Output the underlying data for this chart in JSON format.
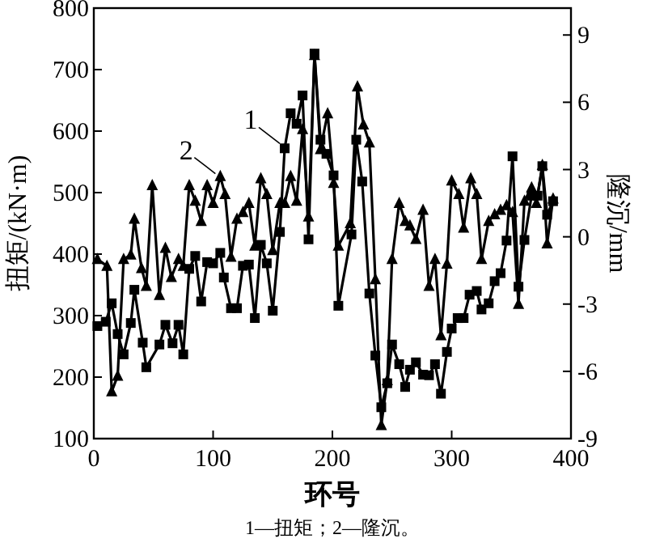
{
  "chart_data": {
    "type": "line",
    "xlabel": "环号",
    "ylabel": "扭矩/(kN·m)",
    "y2label": "隆沉/mm",
    "xlim": [
      0,
      400
    ],
    "xticks": [
      0,
      100,
      200,
      300,
      400
    ],
    "ylim": [
      100,
      800
    ],
    "yticks": [
      100,
      200,
      300,
      400,
      500,
      600,
      700,
      800
    ],
    "y2lim": [
      -9,
      10.2
    ],
    "y2ticks": [
      -9,
      -6,
      -3,
      0,
      3,
      6,
      9
    ],
    "series": [
      {
        "type": "line",
        "color": "#000000",
        "marker": "square",
        "x": [
          3,
          10,
          15,
          20,
          25,
          31,
          34,
          41,
          44,
          55,
          60,
          66,
          71,
          75,
          80,
          85,
          90,
          95,
          100,
          106,
          109,
          115,
          120,
          125,
          130,
          135,
          140,
          145,
          150,
          156,
          160,
          165,
          170,
          175,
          180,
          185,
          190,
          195,
          201,
          205,
          216,
          220,
          225,
          231,
          236,
          241,
          246,
          250,
          256,
          261,
          265,
          270,
          276,
          281,
          286,
          291,
          296,
          300,
          305,
          310,
          315,
          321,
          325,
          331,
          336,
          341,
          346,
          351,
          356,
          361,
          367,
          372,
          376,
          380,
          385
        ],
        "values": [
          283,
          290,
          320,
          270,
          237,
          288,
          342,
          256,
          216,
          253,
          285,
          255,
          285,
          237,
          376,
          397,
          323,
          387,
          385,
          402,
          362,
          312,
          312,
          381,
          383,
          296,
          415,
          385,
          308,
          436,
          572,
          629,
          612,
          658,
          424,
          726,
          586,
          563,
          528,
          316,
          432,
          586,
          518,
          336,
          235,
          151,
          190,
          253,
          221,
          184,
          212,
          224,
          204,
          203,
          221,
          173,
          241,
          279,
          296,
          296,
          334,
          340,
          310,
          320,
          356,
          369,
          422,
          559,
          347,
          423,
          495,
          495,
          543,
          464,
          486
        ]
      },
      {
        "type": "line",
        "color": "#000000",
        "marker": "triangle",
        "axis": "y2",
        "x": [
          3,
          11,
          15,
          20,
          25,
          31,
          34,
          40,
          44,
          49,
          55,
          60,
          65,
          71,
          75,
          80,
          85,
          90,
          95,
          100,
          106,
          110,
          115,
          120,
          125,
          130,
          135,
          140,
          145,
          150,
          156,
          160,
          165,
          170,
          175,
          180,
          185,
          190,
          196,
          201,
          205,
          215,
          221,
          226,
          231,
          236,
          241,
          246,
          250,
          256,
          261,
          265,
          270,
          276,
          281,
          286,
          291,
          296,
          300,
          306,
          310,
          316,
          321,
          325,
          331,
          336,
          341,
          346,
          351,
          356,
          361,
          367,
          371,
          376,
          380,
          385
        ],
        "values": [
          -1.0,
          -1.3,
          -6.9,
          -6.2,
          -1.0,
          -0.8,
          0.8,
          -1.4,
          -2.2,
          2.3,
          -2.6,
          -0.5,
          -1.8,
          -1.0,
          -1.3,
          2.3,
          1.6,
          0.7,
          2.3,
          1.5,
          2.7,
          1.9,
          -0.9,
          0.8,
          1.1,
          1.5,
          -0.4,
          2.6,
          1.9,
          -0.6,
          1.5,
          1.5,
          2.7,
          1.6,
          4.8,
          0.9,
          8.1,
          3.9,
          5.5,
          2.4,
          -0.4,
          0.6,
          6.7,
          5.0,
          4.2,
          -1.9,
          -8.4,
          -6.4,
          -1.0,
          1.5,
          0.7,
          0.5,
          -0.1,
          1.2,
          -2.2,
          -1.0,
          -4.4,
          -1.2,
          2.5,
          1.9,
          0.4,
          2.6,
          1.9,
          -1.0,
          0.7,
          1.0,
          1.2,
          1.4,
          1.1,
          -3.0,
          1.6,
          2.2,
          1.5,
          3.2,
          -0.3,
          1.7
        ]
      }
    ],
    "annotations": [
      {
        "text": "1",
        "x": 160,
        "y": 572
      },
      {
        "text": "2",
        "x": 106,
        "y": 523
      },
      "1—扭矩；2—隆沉。"
    ]
  }
}
